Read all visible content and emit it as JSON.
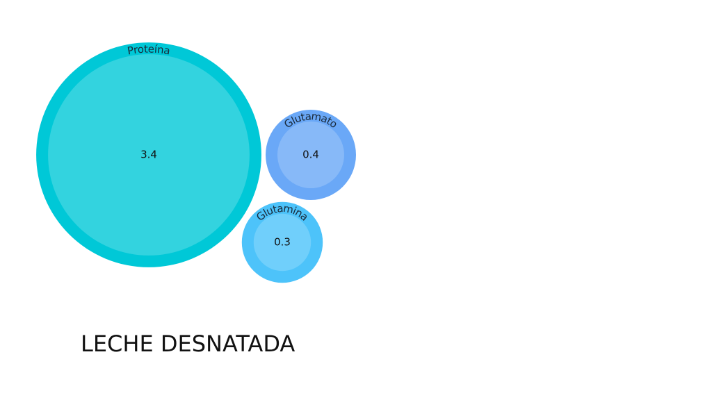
{
  "chart_data": {
    "type": "bubble",
    "title": "LECHE DESNATADA",
    "categories": [
      "Proteína",
      "Glutamato",
      "Glutamina"
    ],
    "values": [
      3.4,
      0.4,
      0.3
    ],
    "colors": [
      "#00c8d7",
      "#6aa8f7",
      "#4dc3fa"
    ]
  }
}
